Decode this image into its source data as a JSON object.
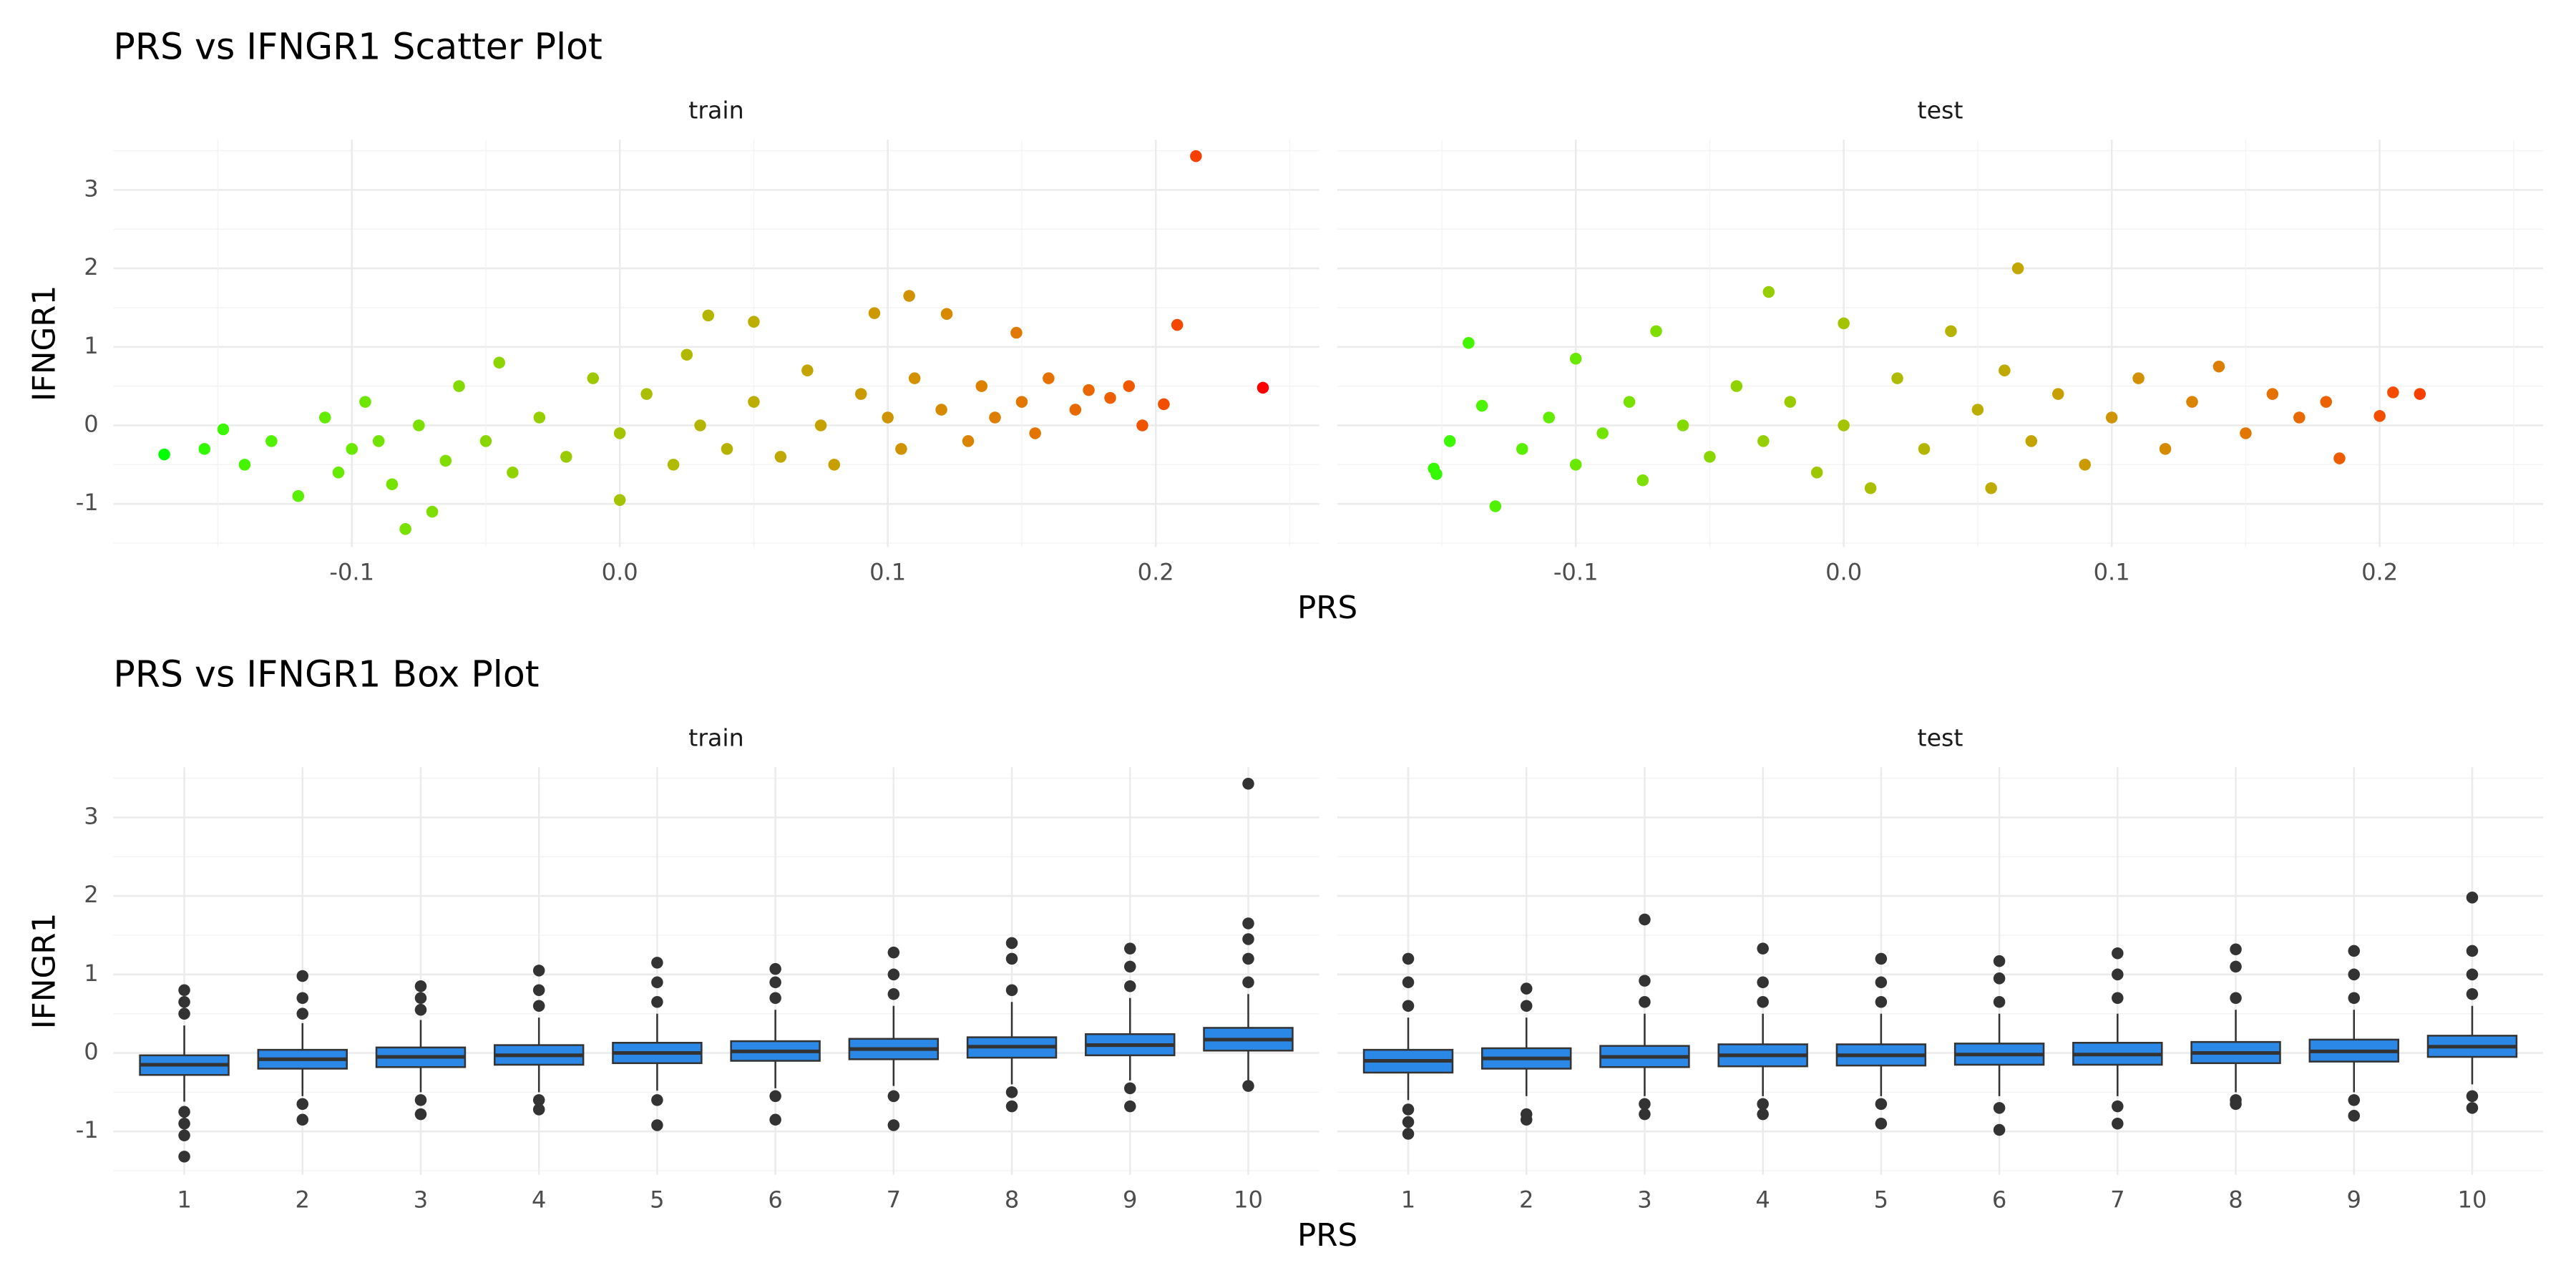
{
  "chart_data": [
    {
      "type": "scatter",
      "title": "PRS vs IFNGR1 Scatter Plot",
      "xlabel": "PRS",
      "ylabel": "IFNGR1",
      "color_low": "#00ff00",
      "color_high": "#ff0000",
      "grid": true,
      "xlim": [
        -0.189,
        0.261
      ],
      "xticks": [
        -0.1,
        {
          "value": 0,
          "label": "0.0"
        },
        0.1,
        0.2
      ],
      "ylim": [
        -1.55,
        3.64
      ],
      "yticks": [
        -1,
        0,
        1,
        2,
        3
      ],
      "panels": [
        {
          "name": "train",
          "x": [
            -0.17,
            -0.155,
            -0.148,
            -0.14,
            -0.13,
            -0.12,
            -0.11,
            -0.105,
            -0.1,
            -0.095,
            -0.09,
            -0.085,
            -0.08,
            -0.075,
            -0.07,
            -0.065,
            -0.06,
            -0.05,
            -0.045,
            -0.04,
            -0.03,
            -0.02,
            -0.01,
            0.0,
            0.0,
            0.01,
            0.02,
            0.025,
            0.03,
            0.033,
            0.04,
            0.05,
            0.05,
            0.06,
            0.07,
            0.075,
            0.08,
            0.09,
            0.095,
            0.1,
            0.105,
            0.108,
            0.11,
            0.12,
            0.122,
            0.13,
            0.135,
            0.14,
            0.148,
            0.15,
            0.155,
            0.16,
            0.17,
            0.175,
            0.183,
            0.19,
            0.195,
            0.203,
            0.208,
            0.215,
            0.24
          ],
          "y": [
            -0.37,
            -0.3,
            -0.05,
            -0.5,
            -0.2,
            -0.9,
            0.1,
            -0.6,
            -0.3,
            0.3,
            -0.2,
            -0.75,
            -1.32,
            0.0,
            -1.1,
            -0.45,
            0.5,
            -0.2,
            0.8,
            -0.6,
            0.1,
            -0.4,
            0.6,
            -0.1,
            -0.95,
            0.4,
            -0.5,
            0.9,
            0.0,
            1.4,
            -0.3,
            1.32,
            0.3,
            -0.4,
            0.7,
            0.0,
            -0.5,
            0.4,
            1.43,
            0.1,
            -0.3,
            1.65,
            0.6,
            0.2,
            1.42,
            -0.2,
            0.5,
            0.1,
            1.18,
            0.3,
            -0.1,
            0.6,
            0.2,
            0.45,
            0.35,
            0.5,
            0.0,
            0.27,
            1.28,
            3.43,
            0.48
          ]
        },
        {
          "name": "test",
          "x": [
            -0.153,
            -0.152,
            -0.147,
            -0.14,
            -0.135,
            -0.13,
            -0.12,
            -0.11,
            -0.1,
            -0.1,
            -0.09,
            -0.08,
            -0.075,
            -0.07,
            -0.06,
            -0.05,
            -0.04,
            -0.03,
            -0.028,
            -0.02,
            -0.01,
            0.0,
            0.0,
            0.01,
            0.02,
            0.03,
            0.04,
            0.05,
            0.055,
            0.06,
            0.065,
            0.07,
            0.08,
            0.09,
            0.1,
            0.11,
            0.12,
            0.13,
            0.14,
            0.15,
            0.16,
            0.17,
            0.18,
            0.185,
            0.2,
            0.205,
            0.215
          ],
          "y": [
            -0.55,
            -0.62,
            -0.2,
            1.05,
            0.25,
            -1.03,
            -0.3,
            0.1,
            -0.5,
            0.85,
            -0.1,
            0.3,
            -0.7,
            1.2,
            0.0,
            -0.4,
            0.5,
            -0.2,
            1.7,
            0.3,
            -0.6,
            1.3,
            0.0,
            -0.8,
            0.6,
            -0.3,
            1.2,
            0.2,
            -0.8,
            0.7,
            2.0,
            -0.2,
            0.4,
            -0.5,
            0.1,
            0.6,
            -0.3,
            0.3,
            0.75,
            -0.1,
            0.4,
            0.1,
            0.3,
            -0.42,
            0.12,
            0.42,
            0.4
          ]
        }
      ]
    },
    {
      "type": "box",
      "title": "PRS vs IFNGR1 Box Plot",
      "xlabel": "PRS",
      "ylabel": "IFNGR1",
      "color": "#2b88e6",
      "grid": true,
      "categories": [
        "1",
        "2",
        "3",
        "4",
        "5",
        "6",
        "7",
        "8",
        "9",
        "10"
      ],
      "ylim": [
        -1.55,
        3.64
      ],
      "yticks": [
        -1,
        0,
        1,
        2,
        3
      ],
      "panels": [
        {
          "name": "train",
          "boxes": [
            {
              "q1": -0.28,
              "median": -0.15,
              "q3": -0.03,
              "whisker_low": -0.62,
              "whisker_high": 0.35,
              "outliers": [
                0.5,
                0.65,
                0.8,
                -0.75,
                -0.9,
                -1.05,
                -1.32
              ]
            },
            {
              "q1": -0.2,
              "median": -0.08,
              "q3": 0.04,
              "whisker_low": -0.55,
              "whisker_high": 0.38,
              "outliers": [
                0.5,
                0.7,
                0.98,
                -0.65,
                -0.85
              ]
            },
            {
              "q1": -0.18,
              "median": -0.05,
              "q3": 0.07,
              "whisker_low": -0.5,
              "whisker_high": 0.42,
              "outliers": [
                0.55,
                0.7,
                0.85,
                -0.6,
                -0.78
              ]
            },
            {
              "q1": -0.15,
              "median": -0.03,
              "q3": 0.1,
              "whisker_low": -0.5,
              "whisker_high": 0.45,
              "outliers": [
                0.6,
                0.8,
                1.05,
                -0.6,
                -0.72
              ]
            },
            {
              "q1": -0.13,
              "median": 0.0,
              "q3": 0.13,
              "whisker_low": -0.48,
              "whisker_high": 0.5,
              "outliers": [
                0.65,
                0.9,
                1.15,
                -0.6,
                -0.92
              ]
            },
            {
              "q1": -0.1,
              "median": 0.02,
              "q3": 0.15,
              "whisker_low": -0.45,
              "whisker_high": 0.55,
              "outliers": [
                0.7,
                0.9,
                1.07,
                -0.55,
                -0.85
              ]
            },
            {
              "q1": -0.08,
              "median": 0.05,
              "q3": 0.18,
              "whisker_low": -0.42,
              "whisker_high": 0.6,
              "outliers": [
                0.75,
                1.0,
                1.28,
                -0.55,
                -0.92
              ]
            },
            {
              "q1": -0.06,
              "median": 0.08,
              "q3": 0.2,
              "whisker_low": -0.4,
              "whisker_high": 0.65,
              "outliers": [
                0.8,
                1.2,
                1.4,
                -0.5,
                -0.68
              ]
            },
            {
              "q1": -0.03,
              "median": 0.1,
              "q3": 0.24,
              "whisker_low": -0.35,
              "whisker_high": 0.7,
              "outliers": [
                0.85,
                1.1,
                1.33,
                -0.45,
                -0.68
              ]
            },
            {
              "q1": 0.03,
              "median": 0.17,
              "q3": 0.32,
              "whisker_low": -0.35,
              "whisker_high": 0.75,
              "outliers": [
                0.9,
                1.2,
                1.45,
                1.65,
                3.43,
                -0.42
              ]
            }
          ]
        },
        {
          "name": "test",
          "boxes": [
            {
              "q1": -0.25,
              "median": -0.1,
              "q3": 0.04,
              "whisker_low": -0.6,
              "whisker_high": 0.45,
              "outliers": [
                0.6,
                0.9,
                1.2,
                -0.72,
                -0.88,
                -1.03
              ]
            },
            {
              "q1": -0.2,
              "median": -0.07,
              "q3": 0.06,
              "whisker_low": -0.55,
              "whisker_high": 0.45,
              "outliers": [
                0.6,
                0.82,
                -0.78,
                -0.85
              ]
            },
            {
              "q1": -0.18,
              "median": -0.05,
              "q3": 0.09,
              "whisker_low": -0.55,
              "whisker_high": 0.5,
              "outliers": [
                0.65,
                0.92,
                1.7,
                -0.65,
                -0.78
              ]
            },
            {
              "q1": -0.17,
              "median": -0.03,
              "q3": 0.11,
              "whisker_low": -0.55,
              "whisker_high": 0.5,
              "outliers": [
                0.65,
                0.9,
                1.33,
                -0.65,
                -0.78
              ]
            },
            {
              "q1": -0.16,
              "median": -0.03,
              "q3": 0.11,
              "whisker_low": -0.55,
              "whisker_high": 0.5,
              "outliers": [
                0.65,
                0.9,
                1.2,
                -0.65,
                -0.9
              ]
            },
            {
              "q1": -0.15,
              "median": -0.02,
              "q3": 0.12,
              "whisker_low": -0.55,
              "whisker_high": 0.5,
              "outliers": [
                0.65,
                0.95,
                1.17,
                -0.7,
                -0.98
              ]
            },
            {
              "q1": -0.15,
              "median": -0.02,
              "q3": 0.13,
              "whisker_low": -0.55,
              "whisker_high": 0.5,
              "outliers": [
                0.7,
                1.0,
                1.27,
                -0.68,
                -0.9
              ]
            },
            {
              "q1": -0.13,
              "median": 0.0,
              "q3": 0.14,
              "whisker_low": -0.5,
              "whisker_high": 0.55,
              "outliers": [
                0.7,
                1.1,
                1.32,
                -0.6,
                -0.65
              ]
            },
            {
              "q1": -0.11,
              "median": 0.02,
              "q3": 0.17,
              "whisker_low": -0.5,
              "whisker_high": 0.55,
              "outliers": [
                0.7,
                1.0,
                1.3,
                -0.6,
                -0.8
              ]
            },
            {
              "q1": -0.05,
              "median": 0.08,
              "q3": 0.22,
              "whisker_low": -0.4,
              "whisker_high": 0.6,
              "outliers": [
                0.75,
                1.0,
                1.3,
                1.98,
                -0.55,
                -0.7
              ]
            }
          ]
        }
      ]
    }
  ]
}
